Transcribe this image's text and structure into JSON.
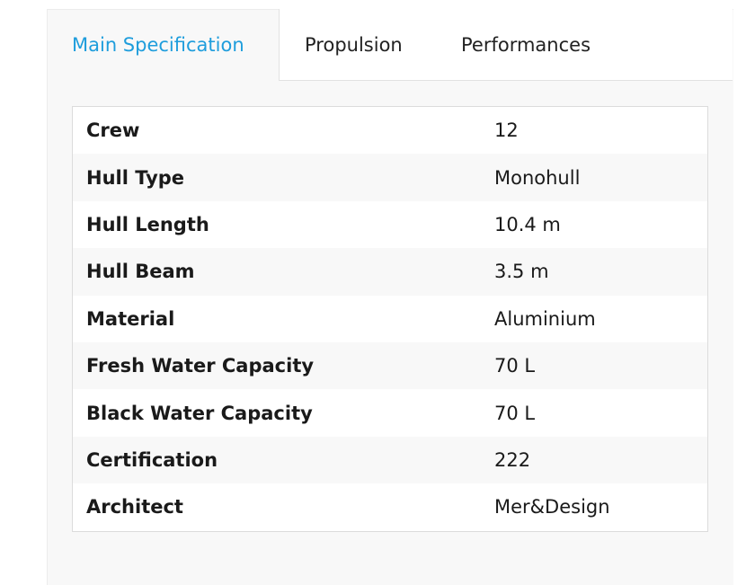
{
  "tabs": [
    {
      "label": "Main Specification",
      "active": true
    },
    {
      "label": "Propulsion",
      "active": false
    },
    {
      "label": "Performances",
      "active": false
    }
  ],
  "accent_color": "#1e9ddc",
  "specs": [
    {
      "label": "Crew",
      "value": "12"
    },
    {
      "label": "Hull Type",
      "value": "Monohull"
    },
    {
      "label": "Hull Length",
      "value": "10.4 m"
    },
    {
      "label": "Hull Beam",
      "value": "3.5 m"
    },
    {
      "label": "Material",
      "value": "Aluminium"
    },
    {
      "label": "Fresh Water Capacity",
      "value": "70 L"
    },
    {
      "label": "Black Water Capacity",
      "value": "70 L"
    },
    {
      "label": "Certification",
      "value": "222"
    },
    {
      "label": "Architect",
      "value": "Mer&Design"
    }
  ]
}
